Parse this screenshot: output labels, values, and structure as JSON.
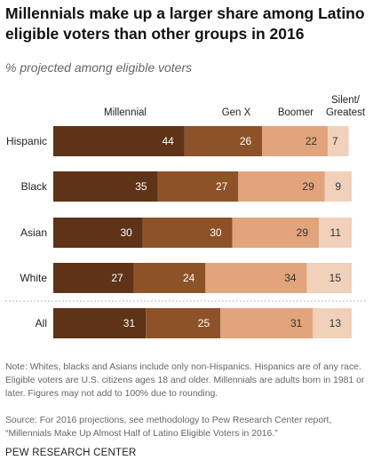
{
  "title": "Millennials make up a larger share among Latino eligible voters than other groups in 2016",
  "subtitle": "% projected among eligible voters",
  "chart_data": {
    "type": "bar",
    "orientation": "horizontal",
    "stacked": true,
    "categories": [
      "Hispanic",
      "Black",
      "Asian",
      "White",
      "All"
    ],
    "series": [
      {
        "name": "Millennial",
        "values": [
          44,
          35,
          30,
          27,
          31
        ],
        "color": "#5e3318"
      },
      {
        "name": "Gen X",
        "values": [
          26,
          27,
          30,
          24,
          25
        ],
        "color": "#8e5228"
      },
      {
        "name": "Boomer",
        "values": [
          22,
          29,
          29,
          34,
          31
        ],
        "color": "#e2a47c"
      },
      {
        "name": "Silent/ Greatest",
        "values": [
          7,
          9,
          11,
          15,
          13
        ],
        "color": "#f1d1ba"
      }
    ],
    "legend_position": "top",
    "grid": false
  },
  "note": "Note: Whites, blacks and Asians include only non-Hispanics. Hispanics are of any race. Eligible voters are U.S. citizens ages 18 and older. Millennials are adults born in 1981 or later. Figures may not add to 100% due to rounding.",
  "source": "Source: For 2016 projections, see methodology to Pew Research Center report, “Millennials Make Up Almost Half of Latino Eligible Voters in 2016.”",
  "brand": "PEW RESEARCH CENTER"
}
